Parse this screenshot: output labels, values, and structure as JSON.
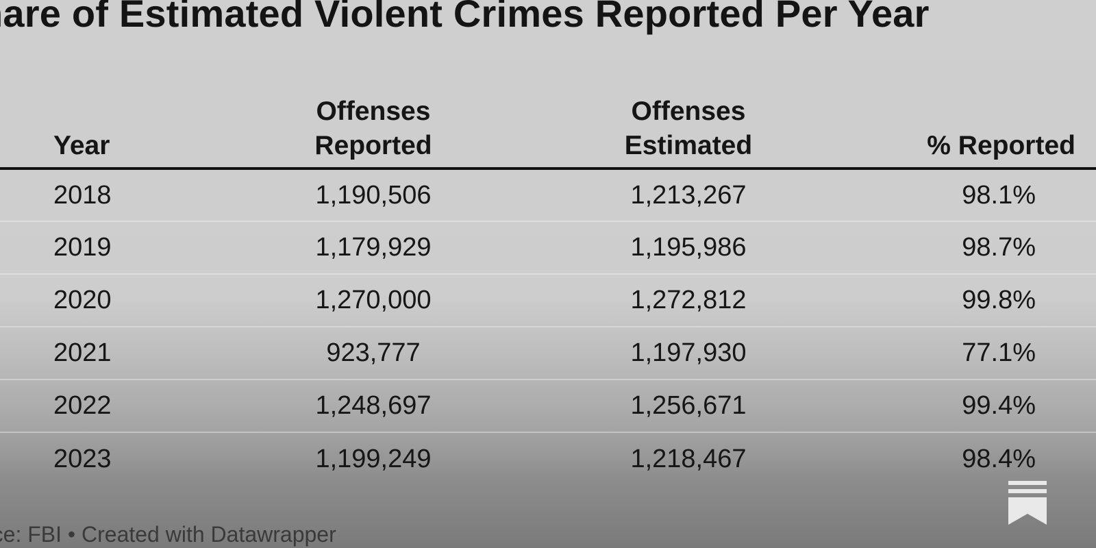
{
  "chart_data": {
    "type": "table",
    "title": "hare of Estimated Violent Crimes Reported Per Year",
    "columns": [
      {
        "key": "year",
        "label_line1": "",
        "label_line2": "Year"
      },
      {
        "key": "reported",
        "label_line1": "Offenses",
        "label_line2": "Reported"
      },
      {
        "key": "estimated",
        "label_line1": "Offenses",
        "label_line2": "Estimated"
      },
      {
        "key": "pct",
        "label_line1": "",
        "label_line2": "% Reported"
      }
    ],
    "rows": [
      {
        "year": "2018",
        "reported": "1,190,506",
        "estimated": "1,213,267",
        "pct": "98.1%"
      },
      {
        "year": "2019",
        "reported": "1,179,929",
        "estimated": "1,195,986",
        "pct": "98.7%"
      },
      {
        "year": "2020",
        "reported": "1,270,000",
        "estimated": "1,272,812",
        "pct": "99.8%"
      },
      {
        "year": "2021",
        "reported": "923,777",
        "estimated": "1,197,930",
        "pct": "77.1%"
      },
      {
        "year": "2022",
        "reported": "1,248,697",
        "estimated": "1,256,671",
        "pct": "99.4%"
      },
      {
        "year": "2023",
        "reported": "1,199,249",
        "estimated": "1,218,467",
        "pct": "98.4%"
      }
    ],
    "source": "rce: FBI • Created with Datawrapper"
  },
  "icons": {
    "bookmark": "bookmark-icon"
  },
  "colors": {
    "background": "#cfcfcf",
    "text": "#1b1b1b",
    "header_rule": "#111111"
  }
}
